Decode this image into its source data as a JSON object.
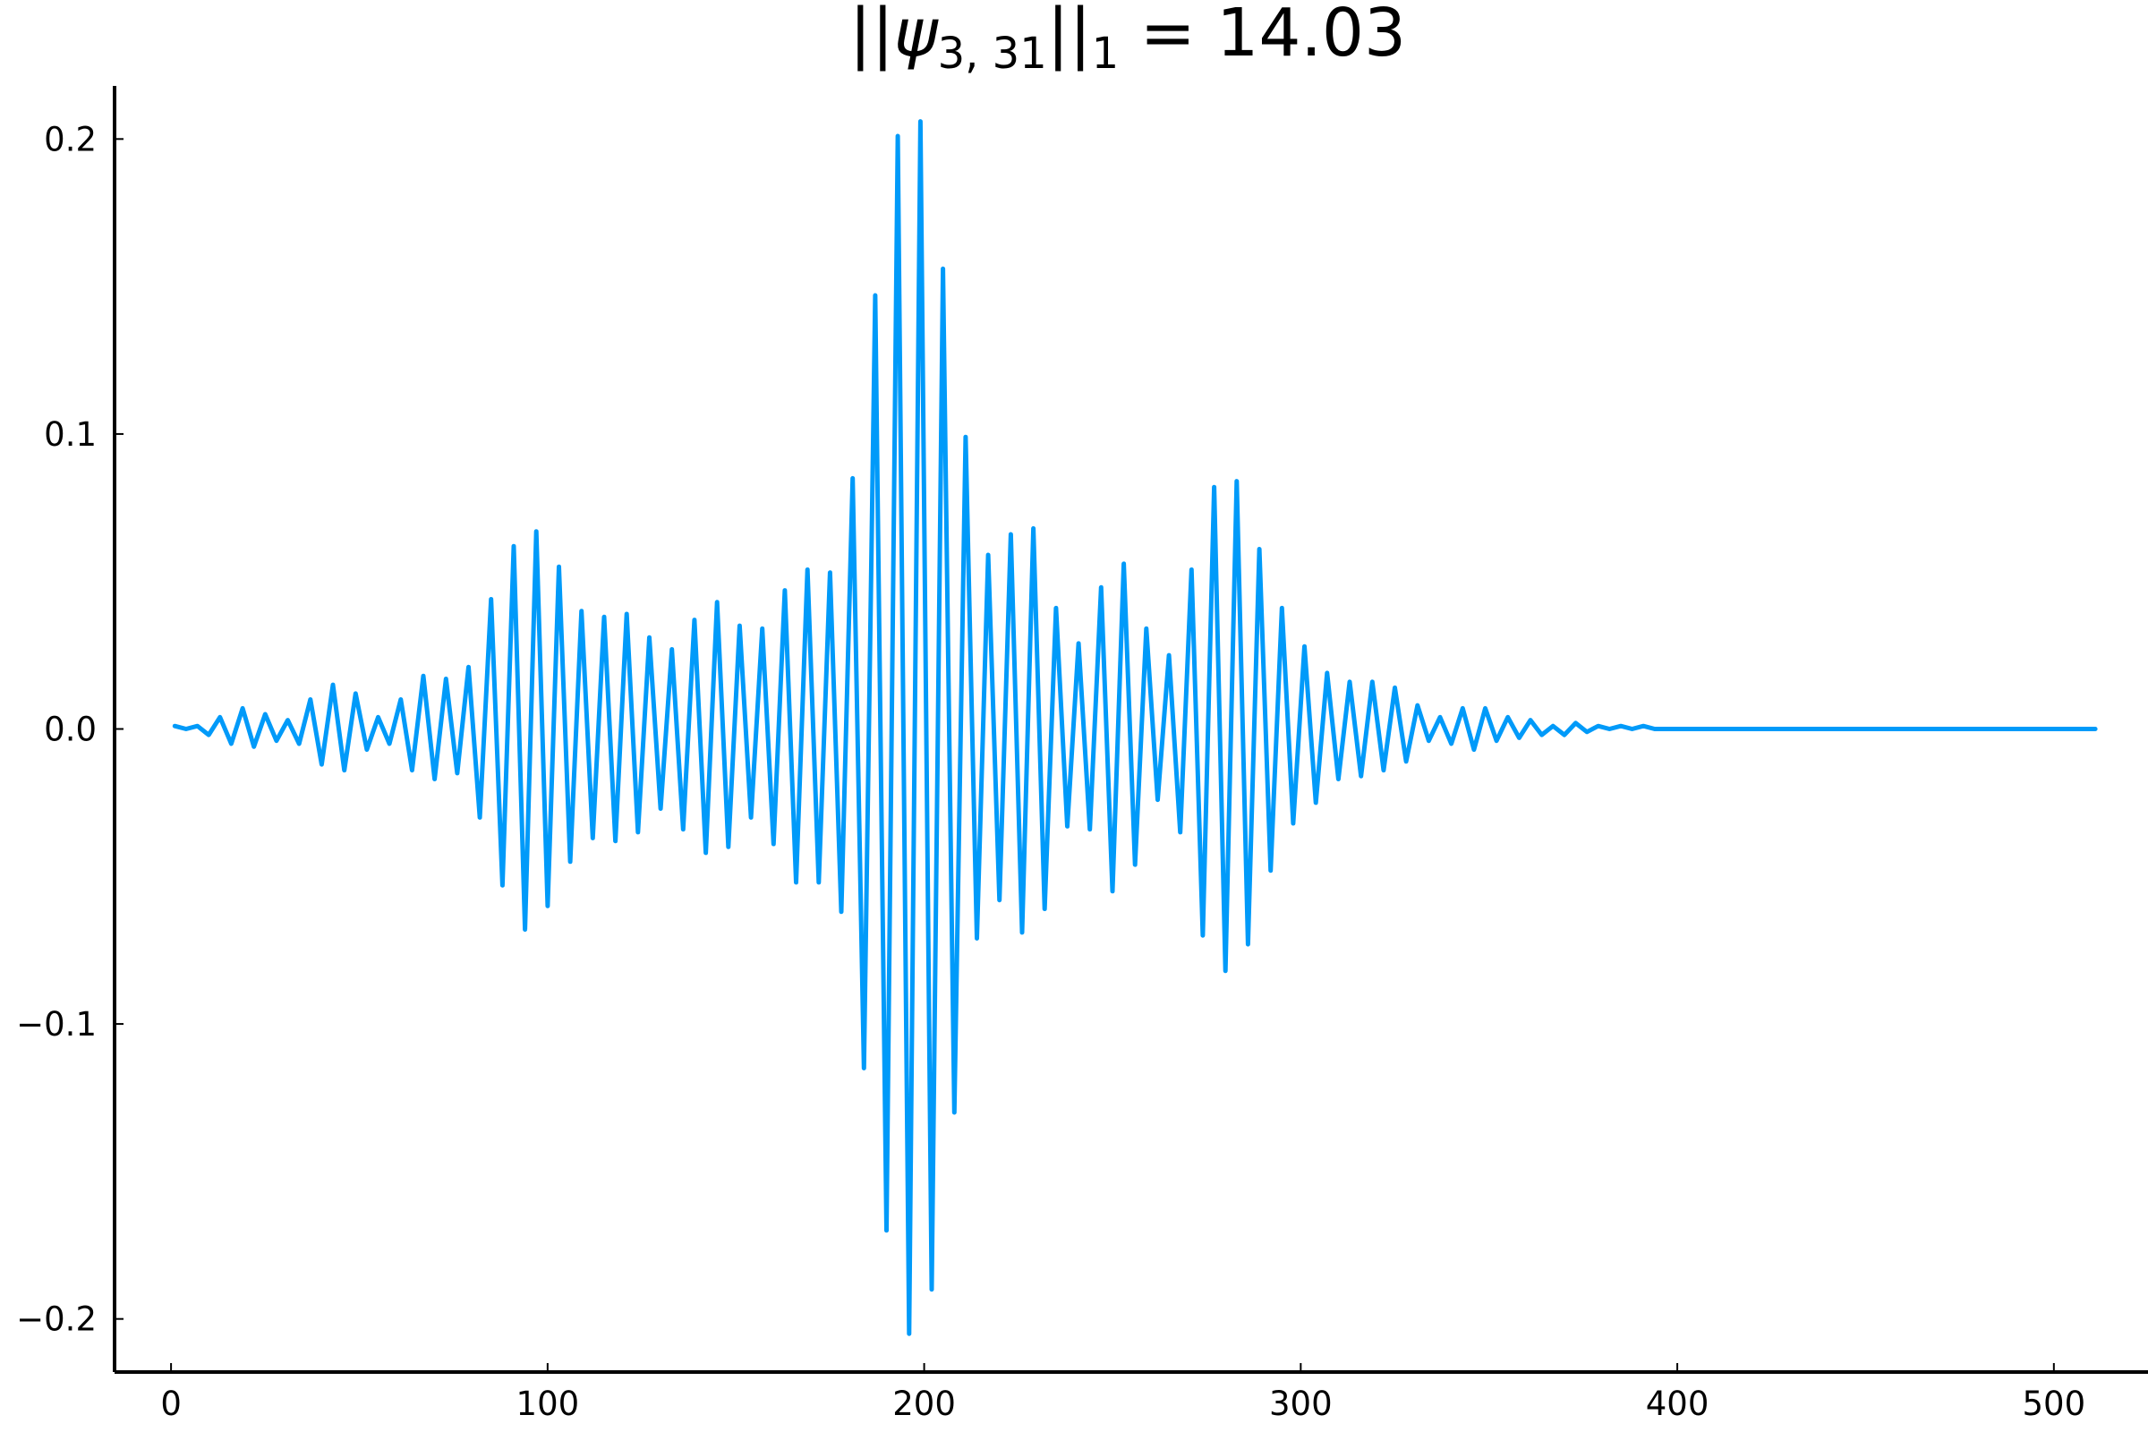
{
  "chart_data": {
    "type": "line",
    "title": {
      "norm_bars_left": "||",
      "psi": "ψ",
      "subscript": "3, 31",
      "norm_bars_right": "||",
      "norm_index": "1",
      "equals": " = ",
      "value": "14.03"
    },
    "xlabel": "",
    "ylabel": "",
    "xlim": [
      -15,
      525
    ],
    "ylim": [
      -0.218,
      0.218
    ],
    "x_ticks": [
      0,
      100,
      200,
      300,
      400,
      500
    ],
    "x_tick_labels": [
      "0",
      "100",
      "200",
      "300",
      "400",
      "500"
    ],
    "y_ticks": [
      -0.2,
      -0.1,
      0.0,
      0.1,
      0.2
    ],
    "y_tick_labels": [
      "−0.2",
      "−0.1",
      "0.0",
      "0.1",
      "0.2"
    ],
    "grid": false,
    "legend": "none",
    "line_color": "#009af9",
    "series": [
      {
        "x_start": 1,
        "x_end": 511,
        "points": [
          [
            1,
            0.001
          ],
          [
            4,
            0.0
          ],
          [
            7,
            0.001
          ],
          [
            10,
            -0.002
          ],
          [
            13,
            0.004
          ],
          [
            16,
            -0.005
          ],
          [
            19,
            0.007
          ],
          [
            22,
            -0.006
          ],
          [
            25,
            0.005
          ],
          [
            28,
            -0.004
          ],
          [
            31,
            0.003
          ],
          [
            34,
            -0.005
          ],
          [
            37,
            0.01
          ],
          [
            40,
            -0.012
          ],
          [
            43,
            0.015
          ],
          [
            46,
            -0.014
          ],
          [
            49,
            0.012
          ],
          [
            52,
            -0.007
          ],
          [
            55,
            0.004
          ],
          [
            58,
            -0.005
          ],
          [
            61,
            0.01
          ],
          [
            64,
            -0.014
          ],
          [
            67,
            0.018
          ],
          [
            70,
            -0.017
          ],
          [
            73,
            0.017
          ],
          [
            76,
            -0.015
          ],
          [
            79,
            0.021
          ],
          [
            82,
            -0.03
          ],
          [
            85,
            0.044
          ],
          [
            88,
            -0.053
          ],
          [
            91,
            0.062
          ],
          [
            94,
            -0.068
          ],
          [
            97,
            0.067
          ],
          [
            100,
            -0.06
          ],
          [
            103,
            0.055
          ],
          [
            106,
            -0.045
          ],
          [
            109,
            0.04
          ],
          [
            112,
            -0.037
          ],
          [
            115,
            0.038
          ],
          [
            118,
            -0.038
          ],
          [
            121,
            0.039
          ],
          [
            124,
            -0.035
          ],
          [
            127,
            0.031
          ],
          [
            130,
            -0.027
          ],
          [
            133,
            0.027
          ],
          [
            136,
            -0.034
          ],
          [
            139,
            0.037
          ],
          [
            142,
            -0.042
          ],
          [
            145,
            0.043
          ],
          [
            148,
            -0.04
          ],
          [
            151,
            0.035
          ],
          [
            154,
            -0.03
          ],
          [
            157,
            0.034
          ],
          [
            160,
            -0.039
          ],
          [
            163,
            0.047
          ],
          [
            166,
            -0.052
          ],
          [
            169,
            0.054
          ],
          [
            172,
            -0.052
          ],
          [
            175,
            0.053
          ],
          [
            178,
            -0.062
          ],
          [
            181,
            0.085
          ],
          [
            184,
            -0.115
          ],
          [
            187,
            0.147
          ],
          [
            190,
            -0.17
          ],
          [
            193,
            0.201
          ],
          [
            196,
            -0.205
          ],
          [
            199,
            0.206
          ],
          [
            202,
            -0.19
          ],
          [
            205,
            0.156
          ],
          [
            208,
            -0.13
          ],
          [
            211,
            0.099
          ],
          [
            214,
            -0.071
          ],
          [
            217,
            0.059
          ],
          [
            220,
            -0.058
          ],
          [
            223,
            0.066
          ],
          [
            226,
            -0.069
          ],
          [
            229,
            0.068
          ],
          [
            232,
            -0.061
          ],
          [
            235,
            0.041
          ],
          [
            238,
            -0.033
          ],
          [
            241,
            0.029
          ],
          [
            244,
            -0.034
          ],
          [
            247,
            0.048
          ],
          [
            250,
            -0.055
          ],
          [
            253,
            0.056
          ],
          [
            256,
            -0.046
          ],
          [
            259,
            0.034
          ],
          [
            262,
            -0.024
          ],
          [
            265,
            0.025
          ],
          [
            268,
            -0.035
          ],
          [
            271,
            0.054
          ],
          [
            274,
            -0.07
          ],
          [
            277,
            0.082
          ],
          [
            280,
            -0.082
          ],
          [
            283,
            0.084
          ],
          [
            286,
            -0.073
          ],
          [
            289,
            0.061
          ],
          [
            292,
            -0.048
          ],
          [
            295,
            0.041
          ],
          [
            298,
            -0.032
          ],
          [
            301,
            0.028
          ],
          [
            304,
            -0.025
          ],
          [
            307,
            0.019
          ],
          [
            310,
            -0.017
          ],
          [
            313,
            0.016
          ],
          [
            316,
            -0.016
          ],
          [
            319,
            0.016
          ],
          [
            322,
            -0.014
          ],
          [
            325,
            0.014
          ],
          [
            328,
            -0.011
          ],
          [
            331,
            0.008
          ],
          [
            334,
            -0.004
          ],
          [
            337,
            0.004
          ],
          [
            340,
            -0.005
          ],
          [
            343,
            0.007
          ],
          [
            346,
            -0.007
          ],
          [
            349,
            0.007
          ],
          [
            352,
            -0.004
          ],
          [
            355,
            0.004
          ],
          [
            358,
            -0.003
          ],
          [
            361,
            0.003
          ],
          [
            364,
            -0.002
          ],
          [
            367,
            0.001
          ],
          [
            370,
            -0.002
          ],
          [
            373,
            0.002
          ],
          [
            376,
            -0.001
          ],
          [
            379,
            0.001
          ],
          [
            382,
            0.0
          ],
          [
            385,
            0.001
          ],
          [
            388,
            0.0
          ],
          [
            391,
            0.001
          ],
          [
            394,
            0.0
          ],
          [
            397,
            0.0
          ],
          [
            400,
            0.0
          ],
          [
            403,
            0.0
          ],
          [
            406,
            0.0
          ],
          [
            409,
            0.0
          ],
          [
            412,
            0.0
          ],
          [
            415,
            0.0
          ],
          [
            418,
            0.0
          ],
          [
            421,
            0.0
          ],
          [
            424,
            0.0
          ],
          [
            427,
            0.0
          ],
          [
            430,
            0.0
          ],
          [
            433,
            0.0
          ],
          [
            436,
            0.0
          ],
          [
            439,
            0.0
          ],
          [
            442,
            0.0
          ],
          [
            445,
            0.0
          ],
          [
            448,
            0.0
          ],
          [
            451,
            0.0
          ],
          [
            454,
            0.0
          ],
          [
            457,
            0.0
          ],
          [
            460,
            0.0
          ],
          [
            463,
            0.0
          ],
          [
            466,
            0.0
          ],
          [
            469,
            0.0
          ],
          [
            472,
            0.0
          ],
          [
            475,
            0.0
          ],
          [
            478,
            0.0
          ],
          [
            481,
            0.0
          ],
          [
            484,
            0.0
          ],
          [
            487,
            0.0
          ],
          [
            490,
            0.0
          ],
          [
            493,
            0.0
          ],
          [
            496,
            0.0
          ],
          [
            499,
            0.0
          ],
          [
            502,
            0.0
          ],
          [
            505,
            0.0
          ],
          [
            508,
            0.0
          ],
          [
            511,
            0.0
          ]
        ]
      }
    ]
  }
}
